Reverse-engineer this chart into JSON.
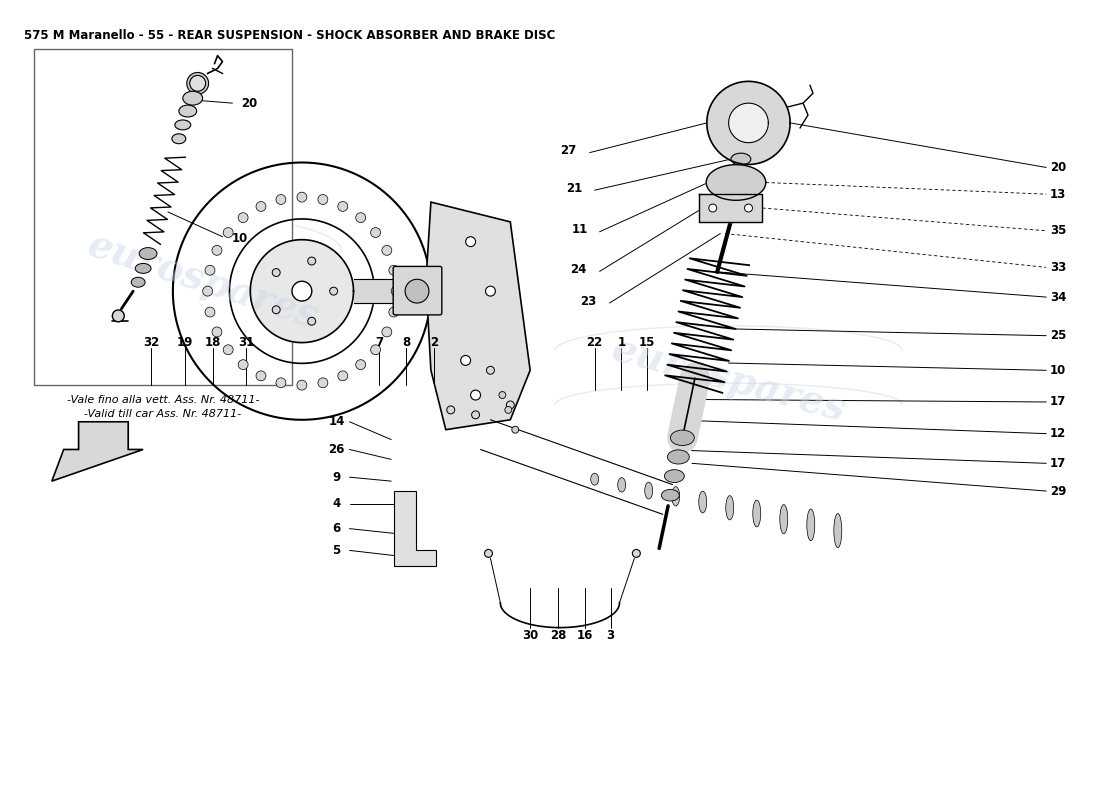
{
  "title": "575 M Maranello - 55 - REAR SUSPENSION - SHOCK ABSORBER AND BRAKE DISC",
  "background_color": "#ffffff",
  "watermark_text": "eurospares",
  "watermark_color": "#c8d4e8",
  "watermark_alpha": 0.45,
  "inset_label_line1": "-Vale fino alla vett. Ass. Nr. 48711-",
  "inset_label_line2": "-Valid till car Ass. Nr. 48711-"
}
